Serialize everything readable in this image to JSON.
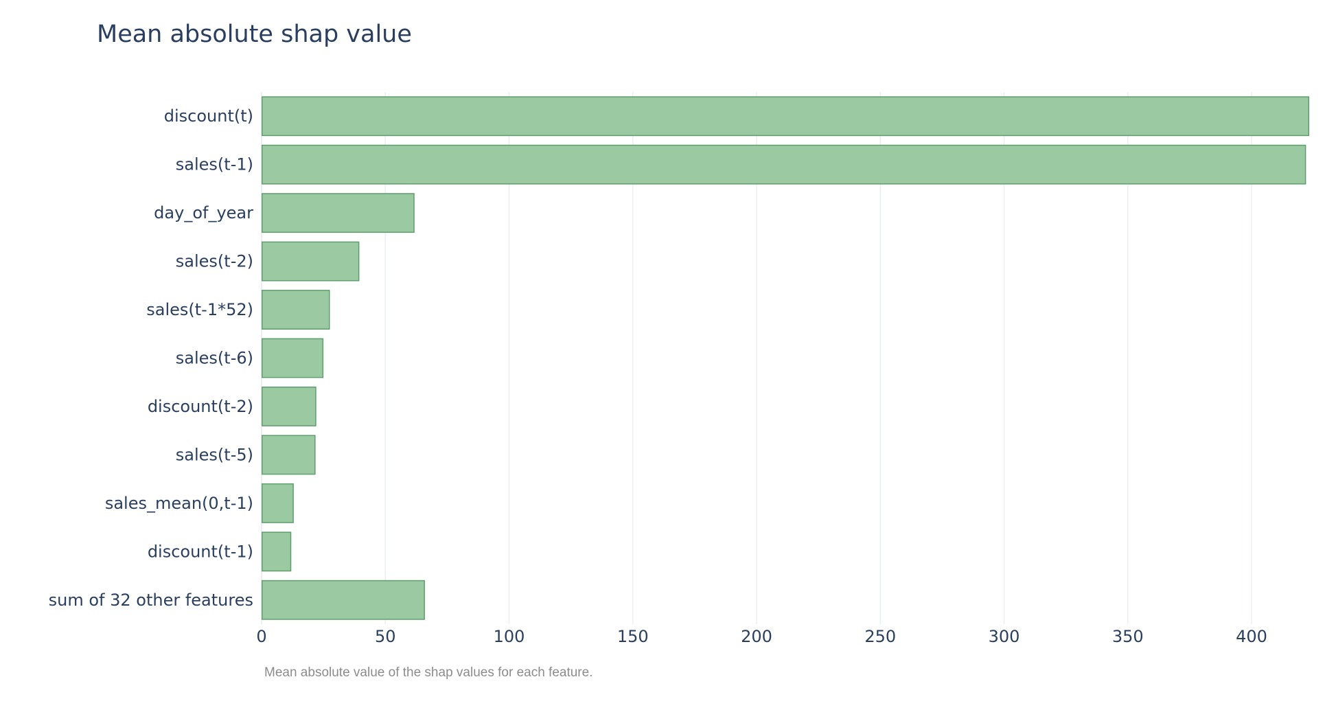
{
  "chart_data": {
    "type": "bar",
    "orientation": "horizontal",
    "title": "Mean absolute shap value",
    "annotation": "Mean absolute value of the shap values for each feature.",
    "categories": [
      "discount(t)",
      "sales(t-1)",
      "day_of_year",
      "sales(t-2)",
      "sales(t-1*52)",
      "sales(t-6)",
      "discount(t-2)",
      "sales(t-5)",
      "sales_mean(0,t-1)",
      "discount(t-1)",
      "sum of 32 other features"
    ],
    "values": [
      423.3,
      422.0,
      61.8,
      39.5,
      27.6,
      25.0,
      22.1,
      21.8,
      13.0,
      12.0,
      66.0
    ],
    "xticks": [
      0,
      50,
      100,
      150,
      200,
      250,
      300,
      350,
      400
    ],
    "xlim": [
      0,
      423.3
    ],
    "grid": true,
    "colors": {
      "bar_fill": "#9bc9a2",
      "bar_stroke": "#5f9e6d",
      "text": "#2a3f5f",
      "annotation": "#8c8c8c",
      "grid": "#ebeef2"
    }
  }
}
